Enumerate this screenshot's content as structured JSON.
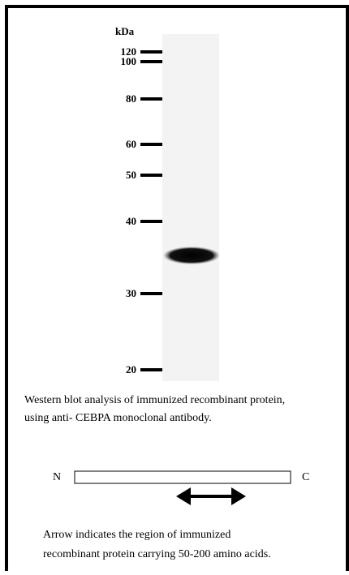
{
  "blot": {
    "unit_label": "kDa",
    "markers": [
      "120",
      "100",
      "80",
      "60",
      "50",
      "40",
      "30",
      "20"
    ]
  },
  "caption": [
    "Western blot analysis of immunized recombinant protein,",
    "using anti- CEBPA monoclonal antibody."
  ],
  "diagram": {
    "n_label": "N",
    "c_label": "C"
  },
  "note": [
    "Arrow indicates the region of immunized",
    "recombinant protein carrying 50-200 amino acids."
  ]
}
